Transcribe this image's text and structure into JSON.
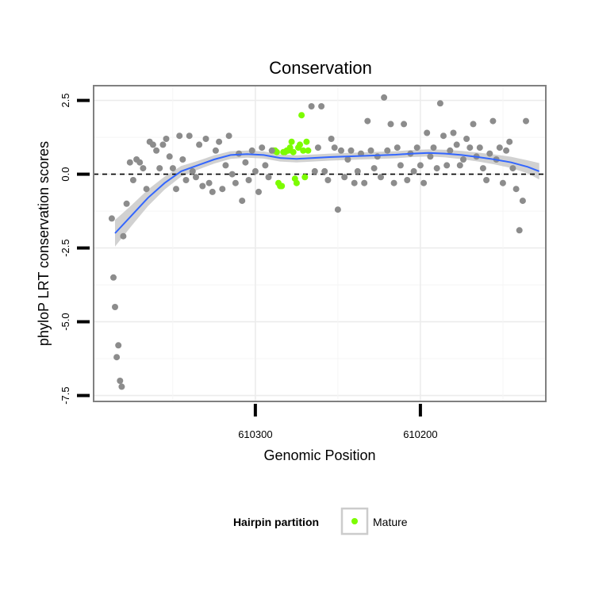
{
  "chart_data": {
    "type": "scatter",
    "title": "Conservation",
    "xlabel": "Genomic Position",
    "ylabel": "phyloP LRT conservation scores",
    "x_axis_reversed": true,
    "xlim": [
      610398,
      610124
    ],
    "ylim": [
      -7.7,
      3.0
    ],
    "x_ticks": [
      {
        "value": 610300,
        "label": "610300"
      },
      {
        "value": 610200,
        "label": "610200"
      }
    ],
    "y_ticks": [
      {
        "value": 2.5,
        "label": "2.5"
      },
      {
        "value": 0,
        "label": "0.0"
      },
      {
        "value": -2.5,
        "label": "-2.5"
      },
      {
        "value": -5,
        "label": "-5.0"
      },
      {
        "value": -7.5,
        "label": "-7.5"
      }
    ],
    "reference_line": {
      "y": 0,
      "style": "dashed"
    },
    "grid": true,
    "legend": {
      "title": "Hairpin partition",
      "position": "bottom",
      "entries": [
        {
          "label": "Mature",
          "color": "#7cfc00"
        }
      ]
    },
    "colors": {
      "points": "#8c8c8c",
      "mature": "#7cfc00",
      "smooth_line": "#3366ff",
      "ribbon": "#c9c9c9"
    },
    "series": [
      {
        "name": "Mature",
        "x": [
          610289,
          610288,
          610287,
          610286,
          610285,
          610284,
          610283,
          610282,
          610281,
          610280,
          610279,
          610278,
          610277,
          610276,
          610275,
          610274,
          610273,
          610272,
          610271,
          610270,
          610269,
          610268
        ],
        "y": [
          0.8,
          0.8,
          0.75,
          -0.3,
          -0.4,
          -0.4,
          0.75,
          0.75,
          0.8,
          0.8,
          0.9,
          1.1,
          0.75,
          -0.15,
          -0.3,
          0.9,
          1.0,
          2.0,
          0.8,
          -0.1,
          1.1,
          0.8
        ]
      },
      {
        "name": "",
        "x": [
          610387,
          610386,
          610385,
          610384,
          610383,
          610382,
          610381,
          610380,
          610378,
          610376,
          610374,
          610372,
          610370,
          610368,
          610366,
          610364,
          610362,
          610360,
          610358,
          610356,
          610354,
          610352,
          610350,
          610348,
          610346,
          610344,
          610342,
          610340,
          610338,
          610336,
          610334,
          610332,
          610330,
          610328,
          610326,
          610324,
          610322,
          610320,
          610318,
          610316,
          610314,
          610312,
          610310,
          610308,
          610306,
          610304,
          610302,
          610300,
          610298,
          610296,
          610294,
          610292,
          610290,
          610266,
          610264,
          610262,
          610260,
          610258,
          610256,
          610254,
          610252,
          610250,
          610248,
          610246,
          610244,
          610242,
          610240,
          610238,
          610236,
          610234,
          610232,
          610230,
          610228,
          610226,
          610224,
          610222,
          610220,
          610218,
          610216,
          610214,
          610212,
          610210,
          610208,
          610206,
          610204,
          610202,
          610200,
          610198,
          610196,
          610194,
          610192,
          610190,
          610188,
          610186,
          610184,
          610182,
          610180,
          610178,
          610176,
          610174,
          610172,
          610170,
          610168,
          610166,
          610164,
          610162,
          610160,
          610158,
          610156,
          610154,
          610152,
          610150,
          610148,
          610146,
          610144,
          610142,
          610140,
          610138,
          610136
        ],
        "y": [
          -1.5,
          -3.5,
          -4.5,
          -6.2,
          -5.8,
          -7.0,
          -7.2,
          -2.1,
          -1.0,
          0.4,
          -0.2,
          0.5,
          0.4,
          0.2,
          -0.5,
          1.1,
          1.0,
          0.8,
          0.2,
          1.0,
          1.2,
          0.6,
          0.2,
          -0.5,
          1.3,
          0.5,
          -0.2,
          1.3,
          0.1,
          -0.1,
          1.0,
          -0.4,
          1.2,
          -0.3,
          -0.6,
          0.8,
          1.1,
          -0.5,
          0.3,
          1.3,
          0.0,
          -0.3,
          0.7,
          -0.9,
          0.4,
          -0.2,
          0.8,
          0.1,
          -0.6,
          0.9,
          0.3,
          -0.1,
          0.8,
          2.3,
          0.1,
          0.9,
          2.3,
          0.1,
          -0.2,
          1.2,
          0.9,
          -1.2,
          0.8,
          -0.1,
          0.5,
          0.8,
          -0.3,
          0.1,
          0.7,
          -0.3,
          1.8,
          0.8,
          0.2,
          0.6,
          -0.1,
          2.6,
          0.8,
          1.7,
          -0.3,
          0.9,
          0.3,
          1.7,
          -0.2,
          0.7,
          0.1,
          0.9,
          0.3,
          -0.3,
          1.4,
          0.6,
          0.9,
          0.2,
          2.4,
          1.3,
          0.3,
          0.8,
          1.4,
          1.0,
          0.3,
          0.5,
          1.2,
          0.9,
          1.7,
          0.6,
          0.9,
          0.2,
          -0.2,
          0.7,
          1.8,
          0.5,
          0.9,
          -0.3,
          0.8,
          1.1,
          0.2,
          -0.5,
          -1.9,
          -0.9,
          1.8
        ]
      }
    ],
    "smooth": {
      "x": [
        610385,
        610375,
        610365,
        610355,
        610345,
        610335,
        610325,
        610315,
        610305,
        610295,
        610285,
        610275,
        610265,
        610255,
        610245,
        610235,
        610225,
        610215,
        610205,
        610195,
        610185,
        610175,
        610165,
        610155,
        610145,
        610135,
        610128
      ],
      "y": [
        -2.0,
        -1.4,
        -0.8,
        -0.3,
        0.1,
        0.3,
        0.5,
        0.65,
        0.68,
        0.65,
        0.55,
        0.52,
        0.55,
        0.58,
        0.6,
        0.62,
        0.64,
        0.66,
        0.7,
        0.72,
        0.7,
        0.65,
        0.58,
        0.5,
        0.4,
        0.25,
        0.1
      ],
      "se": [
        0.45,
        0.35,
        0.28,
        0.22,
        0.18,
        0.15,
        0.14,
        0.13,
        0.12,
        0.12,
        0.12,
        0.12,
        0.12,
        0.12,
        0.12,
        0.12,
        0.12,
        0.12,
        0.12,
        0.12,
        0.13,
        0.14,
        0.15,
        0.17,
        0.19,
        0.22,
        0.28
      ]
    }
  }
}
